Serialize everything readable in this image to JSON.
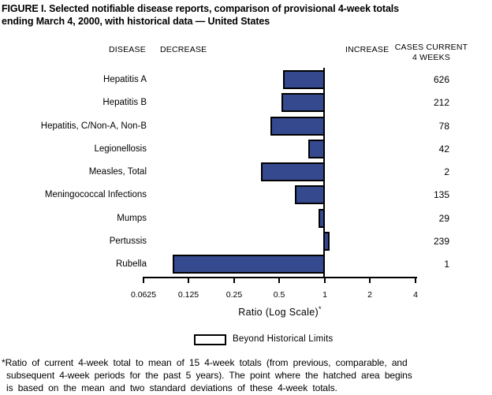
{
  "title_lines": [
    "FIGURE I. Selected notifiable disease reports, comparison of provisional 4-week totals",
    "ending March 4, 2000, with historical data — United States"
  ],
  "column_headers": {
    "disease": "DISEASE",
    "decrease": "DECREASE",
    "increase": "INCREASE",
    "cases_line1": "CASES CURRENT",
    "cases_line2": "4 WEEKS"
  },
  "chart_data": {
    "type": "bar",
    "orientation": "horizontal",
    "scale": "log",
    "baseline_ratio": 1,
    "xlabel": "Ratio (Log Scale)",
    "xlabel_superscript": "*",
    "x_ticks": [
      0.0625,
      0.125,
      0.25,
      0.5,
      1,
      2,
      4
    ],
    "x_tick_labels": [
      "0.0625",
      "0.125",
      "0.25",
      "0.5",
      "1",
      "2",
      "4"
    ],
    "xlim": [
      0.0625,
      4
    ],
    "categories": [
      "Hepatitis A",
      "Hepatitis B",
      "Hepatitis, C/Non-A, Non-B",
      "Legionellosis",
      "Measles, Total",
      "Meningococcal Infections",
      "Mumps",
      "Pertussis",
      "Rubella"
    ],
    "ratios": [
      0.53,
      0.52,
      0.44,
      0.78,
      0.38,
      0.64,
      0.91,
      1.08,
      0.098
    ],
    "cases_current_4_weeks": [
      626,
      212,
      78,
      42,
      2,
      135,
      29,
      239,
      1
    ],
    "bar_color": "#35498E",
    "bar_border_color": "#000000",
    "grid": false
  },
  "legend": {
    "swatch": "hollow-box",
    "label": "Beyond Historical Limits"
  },
  "footnote_lines": [
    "*Ratio of current 4-week total to mean of 15 4-week totals (from previous, comparable, and",
    "subsequent 4-week periods for the past 5 years). The point where the hatched area begins",
    "is based on the mean and two standard deviations of these 4-week totals."
  ]
}
